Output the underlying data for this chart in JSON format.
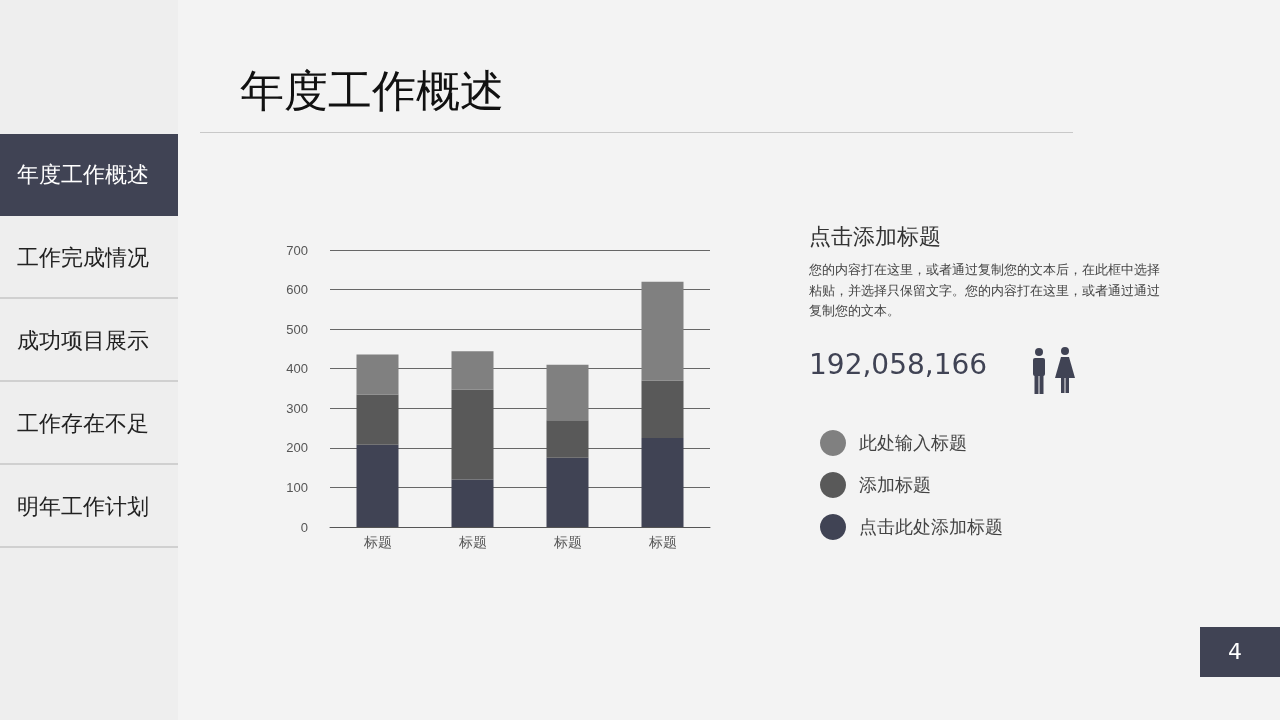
{
  "chart_data": {
    "type": "bar",
    "stacked": true,
    "title": "年度工作概述",
    "subtitle": "点击添加标题",
    "categories": [
      "标题",
      "标题",
      "标题",
      "标题"
    ],
    "series": [
      {
        "name": "点击此处添加标题",
        "color": "#404354",
        "values": [
          208,
          120,
          175,
          225
        ]
      },
      {
        "name": "添加标题",
        "color": "#595959",
        "values": [
          127,
          227,
          95,
          145
        ]
      },
      {
        "name": "此处输入标题",
        "color": "#808080",
        "values": [
          101,
          97,
          140,
          250
        ]
      }
    ],
    "ylim": [
      0,
      700
    ],
    "yticks": [
      0,
      100,
      200,
      300,
      400,
      500,
      600,
      700
    ],
    "grid": "y",
    "legend": "right",
    "annotations": [
      "年度工作概述",
      "工作完成情况",
      "成功项目展示",
      "工作存在不足",
      "明年工作计划",
      "您的内容打在这里，或者通过复制您的文本后，在此框中选择粘贴，并选择只保留文字。您的内容打在这里，或者通过通过复制您的文本。",
      "192,058,166",
      "4"
    ]
  }
}
